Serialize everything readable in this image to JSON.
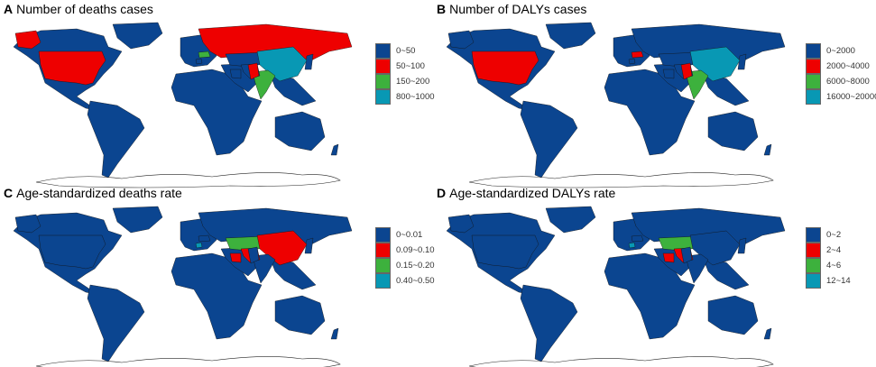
{
  "colors": [
    "#0b4590",
    "#ee0000",
    "#3db13d",
    "#0898b4"
  ],
  "panels": [
    {
      "letter": "A",
      "title": "Number of deaths cases",
      "legend": [
        "0~50",
        "50~100",
        "150~200",
        "800~1000"
      ],
      "regions": {
        "usa": 1,
        "alaska": 1,
        "russia": 1,
        "ukraine": 2,
        "pakistan": 1,
        "india": 2,
        "china": 3
      }
    },
    {
      "letter": "B",
      "title": "Number of DALYs cases",
      "legend": [
        "0~2000",
        "2000~4000",
        "6000~8000",
        "16000~20000"
      ],
      "regions": {
        "usa": 1,
        "ukraine": 1,
        "pakistan": 1,
        "india": 2,
        "china": 3
      }
    },
    {
      "letter": "C",
      "title": "Age-standardized deaths rate",
      "legend": [
        "0~0.01",
        "0.09~0.10",
        "0.15~0.20",
        "0.40~0.50"
      ],
      "regions": {
        "china": 1,
        "kazakhstan": 2,
        "iran": 1,
        "iraq": 1,
        "balkans": 3
      }
    },
    {
      "letter": "D",
      "title": "Age-standardized DALYs rate",
      "legend": [
        "0~2",
        "2~4",
        "4~6",
        "12~14"
      ],
      "regions": {
        "kazakhstan": 2,
        "iran": 1,
        "iraq": 1,
        "balkans": 3
      }
    }
  ]
}
